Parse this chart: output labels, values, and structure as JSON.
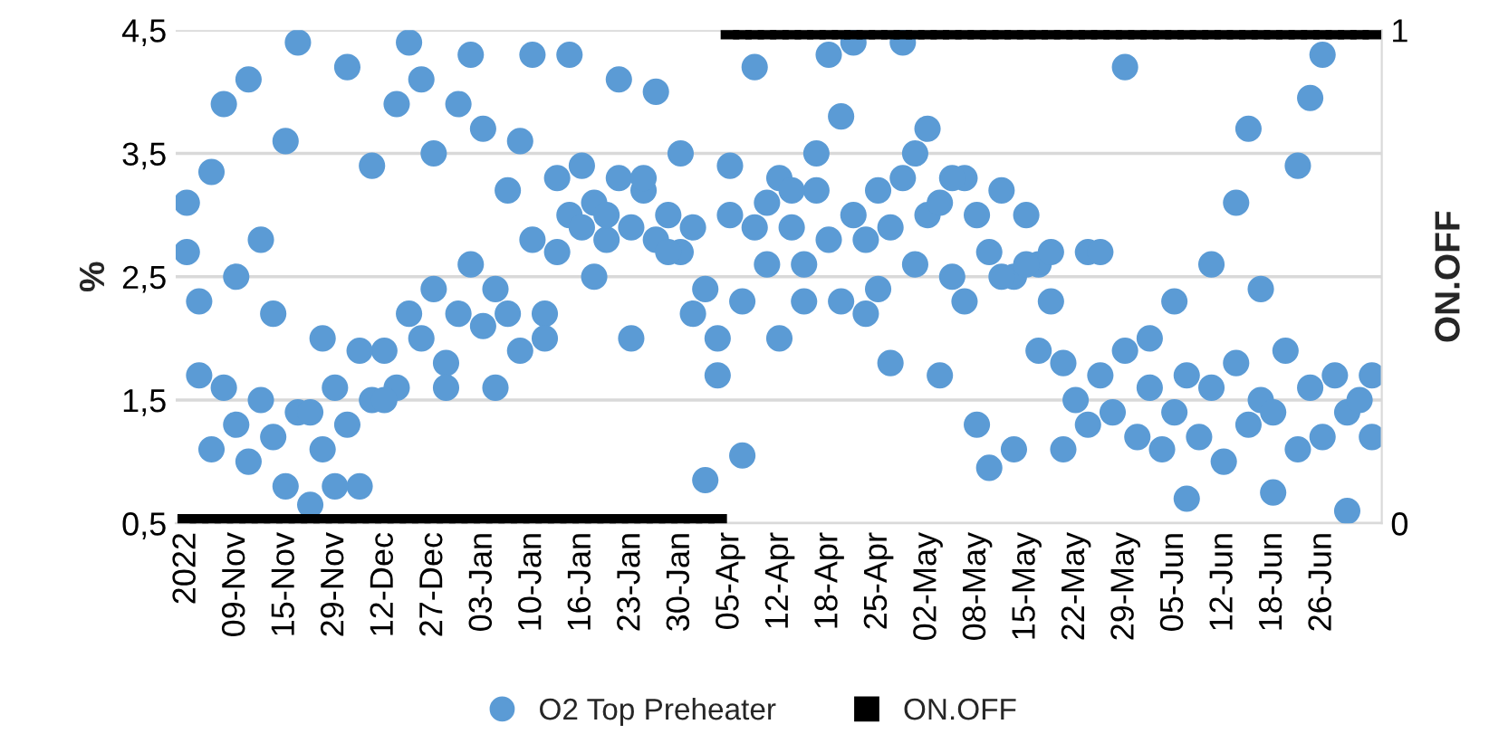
{
  "chart_data": {
    "type": "scatter",
    "ylabel": "%",
    "y2label": "ON.OFF",
    "categories": [
      "2022",
      null,
      null,
      null,
      "09-Nov",
      null,
      null,
      null,
      "15-Nov",
      null,
      null,
      null,
      "29-Nov",
      null,
      null,
      null,
      "12-Dec",
      null,
      null,
      null,
      "27-Dec",
      null,
      null,
      null,
      "03-Jan",
      null,
      null,
      null,
      "10-Jan",
      null,
      null,
      null,
      "16-Jan",
      null,
      null,
      null,
      "23-Jan",
      null,
      null,
      null,
      "30-Jan",
      null,
      null,
      null,
      "05-Apr",
      null,
      null,
      null,
      "12-Apr",
      null,
      null,
      null,
      "18-Apr",
      null,
      null,
      null,
      "25-Apr",
      null,
      null,
      null,
      "02-May",
      null,
      null,
      null,
      "08-May",
      null,
      null,
      null,
      "15-May",
      null,
      null,
      null,
      "22-May",
      null,
      null,
      null,
      "29-May",
      null,
      null,
      null,
      "05-Jun",
      null,
      null,
      null,
      "12-Jun",
      null,
      null,
      null,
      "18-Jun",
      null,
      null,
      null,
      "26-Jun",
      null,
      null,
      null,
      null
    ],
    "ylim": [
      0.5,
      4.5
    ],
    "yticks": [
      {
        "value": 0.5,
        "label": "0,5"
      },
      {
        "value": 1.5,
        "label": "1,5"
      },
      {
        "value": 2.5,
        "label": "2,5"
      },
      {
        "value": 3.5,
        "label": "3,5"
      },
      {
        "value": 4.5,
        "label": "4,5"
      }
    ],
    "y2lim": [
      0,
      1
    ],
    "y2ticks": [
      0,
      1
    ],
    "grid": "y",
    "legend": "bottom",
    "series": [
      {
        "name": "O2 Top Preheater",
        "marker": "circle",
        "color": "#5b9bd5",
        "values": [
          2.7,
          1.7,
          1.1,
          1.6,
          1.3,
          1.0,
          1.5,
          1.2,
          0.8,
          1.4,
          0.65,
          1.1,
          1.6,
          1.3,
          0.8,
          1.5,
          1.9,
          1.6,
          2.2,
          2.0,
          2.4,
          1.8,
          2.2,
          2.6,
          2.1,
          2.4,
          3.2,
          1.9,
          2.8,
          2.2,
          2.7,
          3.0,
          2.9,
          3.1,
          2.8,
          3.3,
          2.9,
          3.2,
          2.8,
          3.0,
          2.7,
          2.9,
          2.4,
          1.7,
          3.0,
          2.3,
          2.9,
          3.1,
          3.3,
          2.9,
          2.6,
          3.2,
          2.8,
          2.3,
          3.0,
          2.8,
          3.2,
          2.9,
          3.3,
          2.6,
          3.0,
          3.1,
          2.5,
          3.3,
          3.0,
          2.7,
          3.2,
          2.5,
          3.0,
          2.6,
          2.3,
          1.8,
          1.5,
          1.3,
          1.7,
          1.4,
          1.9,
          1.2,
          1.6,
          1.1,
          1.4,
          1.7,
          1.2,
          1.6,
          1.0,
          1.8,
          1.3,
          1.5,
          1.4,
          1.9,
          1.1,
          1.6,
          1.2,
          1.7,
          1.4,
          1.5,
          1.7
        ]
      },
      {
        "marker": "circle",
        "color": "#5b9bd5",
        "values": [
          3.1,
          2.3,
          3.35,
          3.9,
          2.5,
          4.1,
          2.8,
          2.2,
          3.6,
          4.4,
          1.4,
          2.0,
          0.8,
          4.2,
          1.9,
          3.4,
          1.5,
          3.9,
          4.4,
          4.1,
          3.5,
          1.6,
          3.9,
          4.3,
          3.7,
          1.6,
          2.2,
          3.6,
          4.3,
          2.0,
          3.3,
          4.3,
          3.4,
          2.5,
          3.0,
          4.1,
          2.0,
          3.3,
          4.0,
          2.7,
          3.5,
          2.2,
          0.85,
          2.0,
          3.4,
          1.05,
          4.2,
          2.6,
          2.0,
          3.2,
          2.3,
          3.5,
          4.3,
          3.8,
          4.4,
          2.2,
          2.4,
          1.8,
          4.4,
          3.5,
          3.7,
          1.7,
          3.3,
          2.3,
          1.3,
          0.95,
          2.5,
          1.1,
          2.6,
          1.9,
          2.7,
          1.1,
          null,
          2.7,
          2.7,
          null,
          4.2,
          null,
          2.0,
          null,
          2.3,
          0.7,
          null,
          2.6,
          null,
          3.1,
          3.7,
          2.4,
          0.75,
          null,
          3.4,
          3.95,
          4.3,
          null,
          0.6,
          null,
          1.2
        ]
      },
      {
        "name": "ON.OFF",
        "marker": "square",
        "color": "#000000",
        "axis": "y2",
        "values": [
          0,
          0,
          0,
          0,
          0,
          0,
          0,
          0,
          0,
          0,
          0,
          0,
          0,
          0,
          0,
          0,
          0,
          0,
          0,
          0,
          0,
          0,
          0,
          0,
          0,
          0,
          0,
          0,
          0,
          0,
          0,
          0,
          0,
          0,
          0,
          0,
          0,
          0,
          0,
          0,
          0,
          0,
          0,
          0,
          1,
          1,
          1,
          1,
          1,
          1,
          1,
          1,
          1,
          1,
          1,
          1,
          1,
          1,
          1,
          1,
          1,
          1,
          1,
          1,
          1,
          1,
          1,
          1,
          1,
          1,
          1,
          1,
          1,
          1,
          1,
          1,
          1,
          1,
          1,
          1,
          1,
          1,
          1,
          1,
          1,
          1,
          1,
          1,
          1,
          1,
          1,
          1,
          1,
          1,
          1,
          1,
          1
        ]
      }
    ]
  }
}
